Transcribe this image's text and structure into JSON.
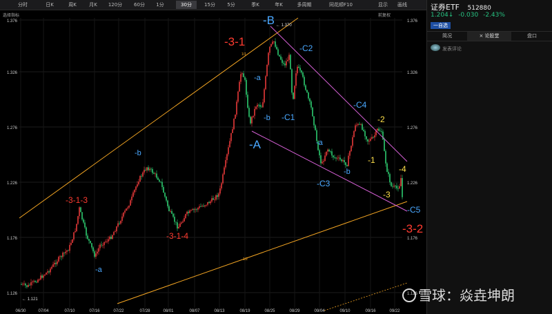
{
  "toolbar": {
    "items": [
      "分时",
      "日K",
      "周K",
      "月K",
      "120分",
      "60分",
      "1分",
      "30分",
      "15分",
      "5分",
      "季K",
      "年K",
      "多周期",
      "同花顺F10"
    ],
    "active": "30分",
    "right_items": [
      "显示",
      "画线"
    ]
  },
  "subbar": {
    "indicator_label": "选择指标",
    "adjust_label": "前复权"
  },
  "chart": {
    "y_ticks": [
      "1.376",
      "1.326",
      "1.276",
      "1.226",
      "1.176",
      "1.126"
    ],
    "x_ticks": [
      "06/30",
      "07/04",
      "07/10",
      "07/16",
      "07/22",
      "07/28",
      "08/01",
      "08/07",
      "08/13",
      "08/19",
      "08/25",
      "08/29",
      "09/04",
      "09/10",
      "09/16",
      "09/22"
    ],
    "high_label": "1.370",
    "low_label": "1.121",
    "fib_labels": [
      "1/1",
      "1/2"
    ],
    "wave_labels": [
      {
        "text": "-3-1",
        "color": "#ff3b30"
      },
      {
        "text": "-B",
        "color": "#4aa8ff"
      },
      {
        "text": "-C2",
        "color": "#4aa8ff"
      },
      {
        "text": "-a",
        "color": "#4aa8ff"
      },
      {
        "text": "-b",
        "color": "#4aa8ff"
      },
      {
        "text": "-C1",
        "color": "#4aa8ff"
      },
      {
        "text": "-A",
        "color": "#4aa8ff"
      },
      {
        "text": "-C4",
        "color": "#4aa8ff"
      },
      {
        "text": "-2",
        "color": "#ffe04a"
      },
      {
        "text": "-a",
        "color": "#4aa8ff"
      },
      {
        "text": "-1",
        "color": "#ffe04a"
      },
      {
        "text": "-b",
        "color": "#4aa8ff"
      },
      {
        "text": "-C3",
        "color": "#4aa8ff"
      },
      {
        "text": "-4",
        "color": "#ffe04a"
      },
      {
        "text": "-3",
        "color": "#ffe04a"
      },
      {
        "text": "-C5",
        "color": "#4aa8ff"
      },
      {
        "text": "-3-2",
        "color": "#ff3b30"
      },
      {
        "text": "-b",
        "color": "#4aa8ff"
      },
      {
        "text": "-3-1-3",
        "color": "#ff3b30"
      },
      {
        "text": "-3-1-4",
        "color": "#ff3b30"
      },
      {
        "text": "-a",
        "color": "#4aa8ff"
      }
    ]
  },
  "right_panel": {
    "title": "证券ETF",
    "code": "512880",
    "price": "1.204",
    "arrow": "↓",
    "change": "-0.030",
    "change_pct": "-2.43%",
    "badge": "一自选",
    "tabs": [
      "简况",
      "× 论股堂",
      "盘口"
    ],
    "post_label": "发表评论"
  },
  "watermark": {
    "text": "雪球：焱垚坤朗"
  },
  "colors": {
    "up": "#e83a3a",
    "down": "#2ecc71",
    "trend_orange": "#f5a623",
    "channel_magenta": "#d660d6"
  }
}
